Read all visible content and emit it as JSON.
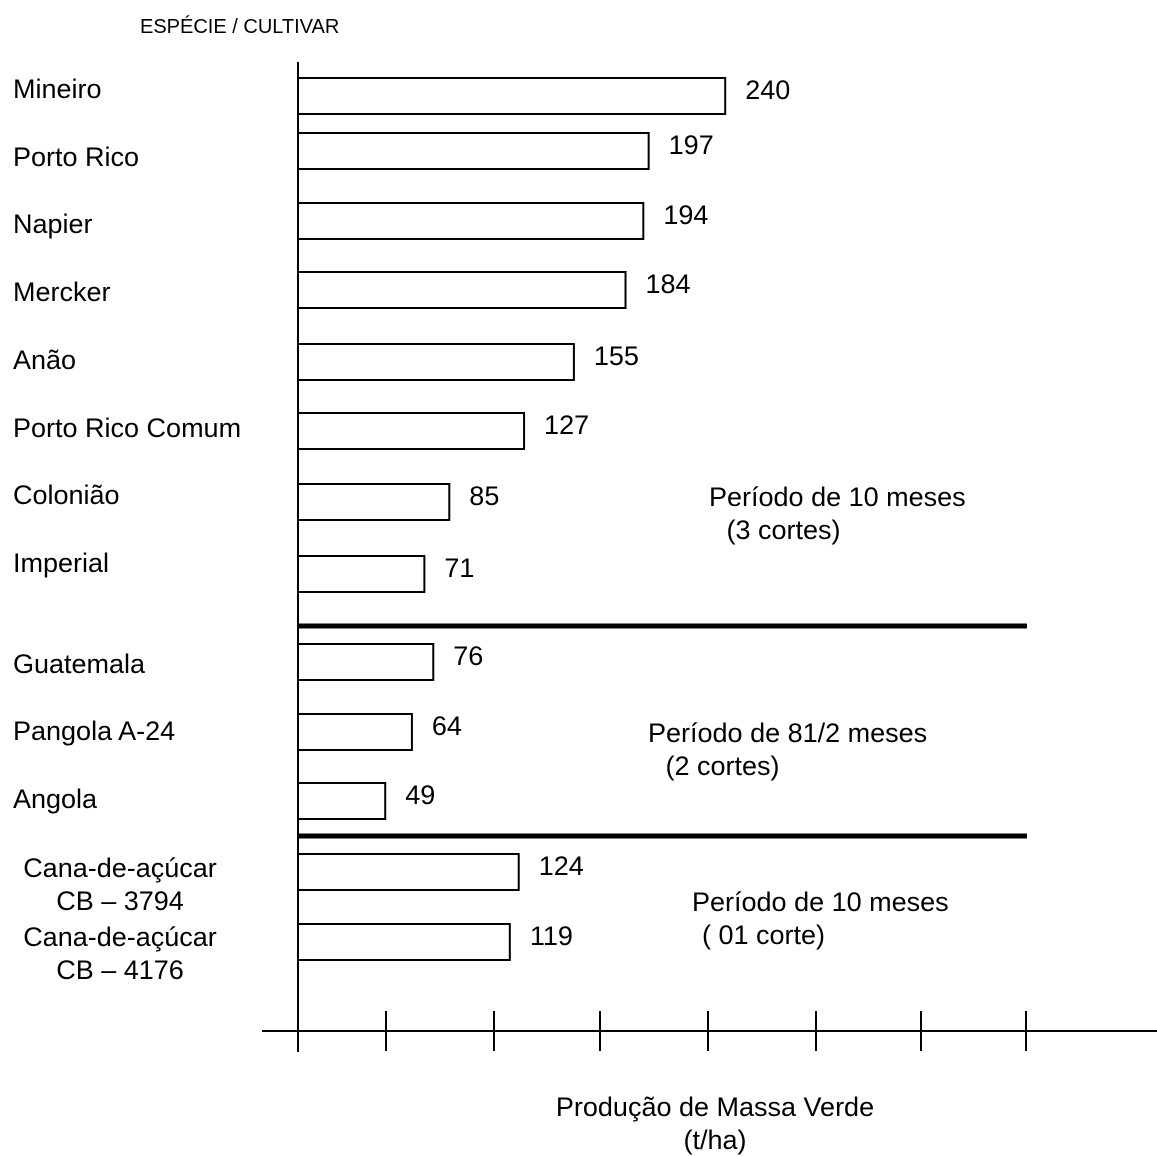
{
  "header": "ESPÉCIE / CULTIVAR",
  "x_title": [
    "Produção de Massa Verde",
    "(t/ha)"
  ],
  "chart_data": {
    "type": "bar",
    "orientation": "horizontal",
    "ylabel": "ESPÉCIE / CULTIVAR",
    "xlabel": "Produção de Massa Verde (t/ha)",
    "categories": [
      "Mineiro",
      "Porto Rico",
      "Napier",
      "Mercker",
      "Anão",
      "Porto Rico Comum",
      "Colonião",
      "Imperial",
      "Guatemala",
      "Pangola A-24",
      "Angola",
      "Cana-de-açúcar CB – 3794",
      "Cana-de-açúcar CB – 4176"
    ],
    "values": [
      240,
      197,
      194,
      184,
      155,
      127,
      85,
      71,
      76,
      64,
      49,
      124,
      119
    ],
    "xlim": [
      0,
      280
    ],
    "grid": false,
    "groups": [
      {
        "note": [
          "Período de 10 meses",
          " (3 cortes)"
        ],
        "categories": [
          "Mineiro",
          "Porto Rico",
          "Napier",
          "Mercker",
          "Anão",
          "Porto Rico Comum",
          "Colonião",
          "Imperial"
        ]
      },
      {
        "note": [
          "Período de 81/2 meses",
          " (2 cortes)"
        ],
        "categories": [
          "Guatemala",
          "Pangola A-24",
          "Angola"
        ]
      },
      {
        "note": [
          "Período de 10 meses",
          "( 01 corte)"
        ],
        "categories": [
          "Cana-de-açúcar CB – 3794",
          "Cana-de-açúcar CB – 4176"
        ]
      }
    ],
    "category_lines": [
      [
        "Mineiro"
      ],
      [
        "Porto Rico"
      ],
      [
        "Napier"
      ],
      [
        "Mercker"
      ],
      [
        "Anão"
      ],
      [
        "Porto Rico Comum"
      ],
      [
        "Colonião"
      ],
      [
        "Imperial"
      ],
      [
        "Guatemala"
      ],
      [
        "Pangola A-24"
      ],
      [
        "Angola"
      ],
      [
        "Cana-de-açúcar",
        "CB – 3794"
      ],
      [
        "Cana-de-açúcar",
        "CB – 4176"
      ]
    ]
  }
}
